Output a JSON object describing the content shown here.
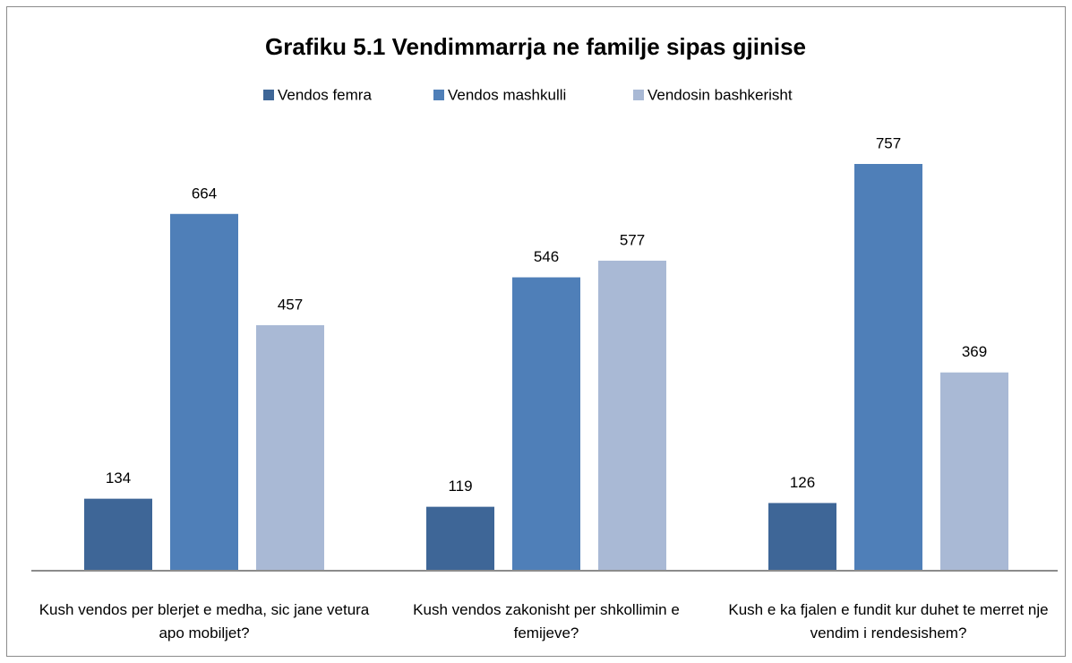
{
  "chart_data": {
    "type": "bar",
    "title": "Grafiku 5.1 Vendimmarrja ne familje sipas gjinise",
    "categories": [
      "Kush vendos per blerjet e medha, sic jane vetura apo mobiljet?",
      "Kush vendos zakonisht per shkollimin e femijeve?",
      "Kush e ka fjalen e fundit kur duhet te merret nje vendim i rendesishem?"
    ],
    "series": [
      {
        "name": "Vendos femra",
        "color": "#3e6697",
        "values": [
          134,
          119,
          126
        ]
      },
      {
        "name": "Vendos mashkulli",
        "color": "#4f7fb8",
        "values": [
          664,
          546,
          757
        ]
      },
      {
        "name": "Vendosin bashkerisht",
        "color": "#a9b9d5",
        "values": [
          457,
          577,
          369
        ]
      }
    ],
    "legend": "top"
  }
}
